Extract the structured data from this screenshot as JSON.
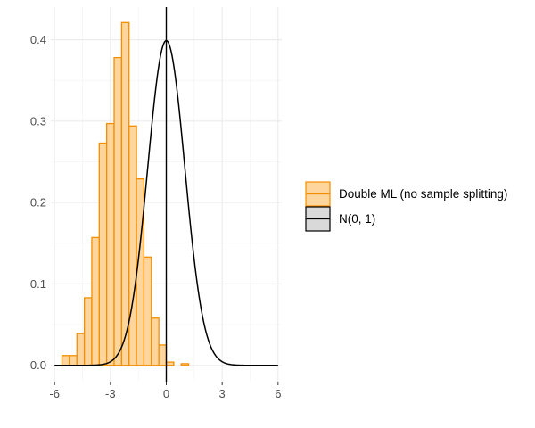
{
  "chart_data": {
    "type": "bar",
    "title": "",
    "xlabel": "",
    "ylabel": "",
    "xlim": [
      -6.2,
      6.2
    ],
    "ylim": [
      -0.02,
      0.44
    ],
    "x_ticks": [
      -6,
      -3,
      0,
      3,
      6
    ],
    "x_tick_labels": [
      "-6",
      "-3",
      "0",
      "3",
      "6"
    ],
    "y_ticks": [
      0,
      0.1,
      0.2,
      0.3,
      0.4
    ],
    "y_tick_labels": [
      "0.0",
      "0.1",
      "0.2",
      "0.3",
      "0.4"
    ],
    "grid": true,
    "legend_position": "right",
    "series": [
      {
        "name": "Double ML (no sample splitting)",
        "kind": "histogram",
        "bin_width": 0.4,
        "bin_left_edges": [
          -5.6,
          -5.2,
          -4.8,
          -4.4,
          -4.0,
          -3.6,
          -3.2,
          -2.8,
          -2.4,
          -2.0,
          -1.6,
          -1.2,
          -0.8,
          -0.4,
          0.0,
          0.4,
          0.8,
          1.2,
          1.6
        ],
        "values": [
          0.012,
          0.012,
          0.039,
          0.083,
          0.157,
          0.273,
          0.297,
          0.378,
          0.421,
          0.294,
          0.229,
          0.133,
          0.058,
          0.025,
          0.004,
          0.0,
          0.002,
          0.0,
          0.0
        ],
        "fill": "#ffd59e",
        "stroke": "#f28e00"
      },
      {
        "name": "N(0, 1)",
        "kind": "density-line",
        "mean": 0,
        "sd": 1,
        "x_range": [
          -6,
          6
        ],
        "stroke": "#000000"
      }
    ],
    "reference_line": {
      "x": 0,
      "color": "#000000"
    }
  }
}
